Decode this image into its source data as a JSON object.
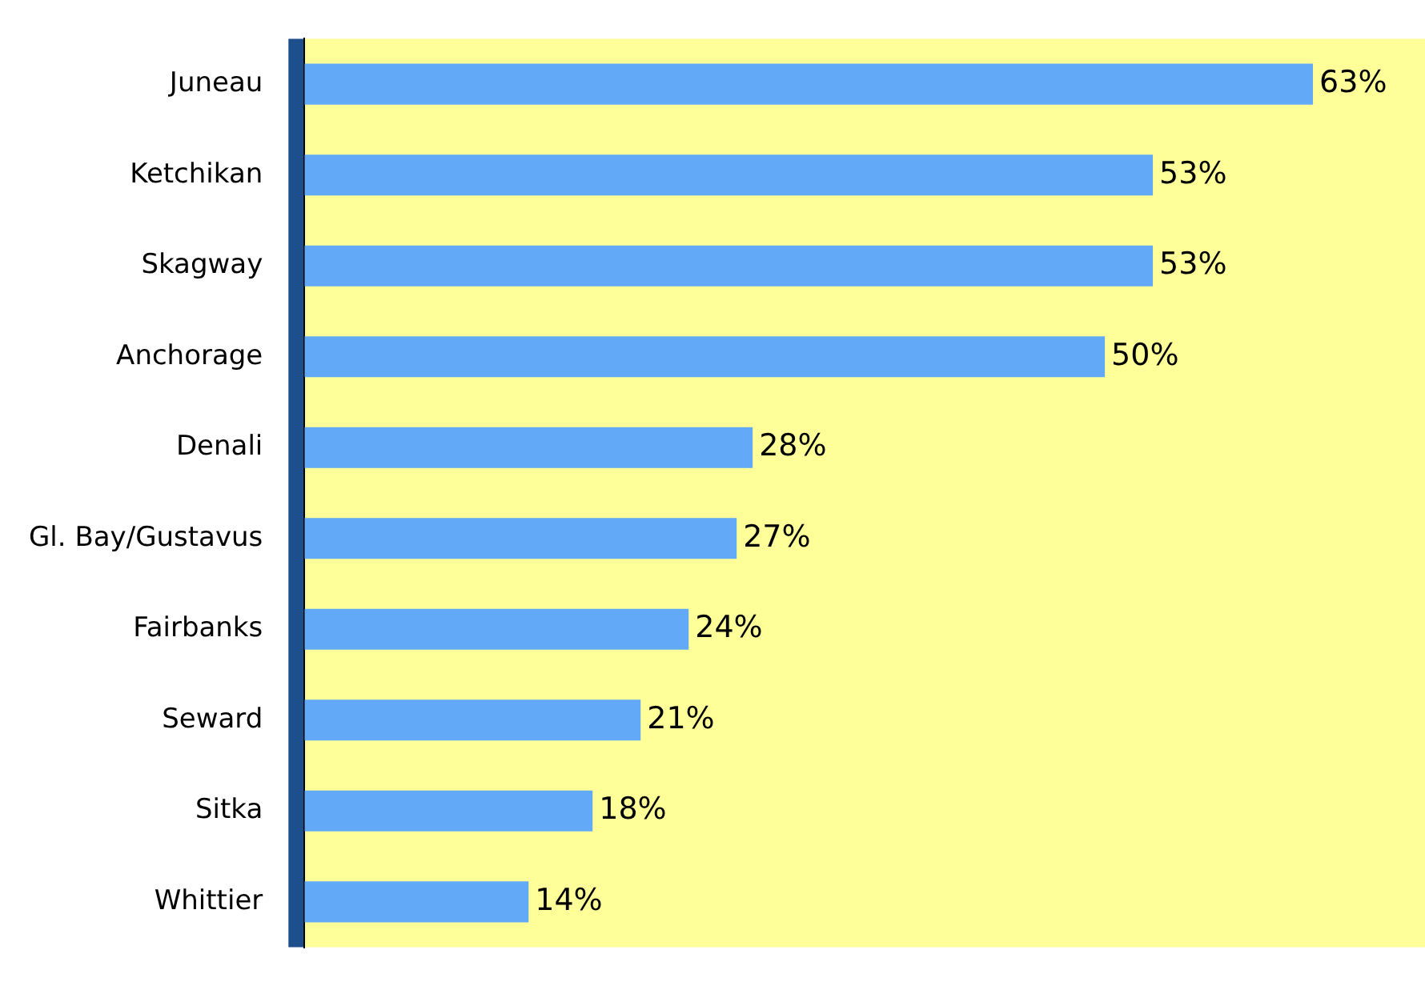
{
  "chart_data": {
    "type": "bar",
    "orientation": "horizontal",
    "categories": [
      "Juneau",
      "Ketchikan",
      "Skagway",
      "Anchorage",
      "Denali",
      "Gl. Bay/Gustavus",
      "Fairbanks",
      "Seward",
      "Sitka",
      "Whittier"
    ],
    "values": [
      63,
      53,
      53,
      50,
      28,
      27,
      24,
      21,
      18,
      14
    ],
    "value_labels": [
      "63%",
      "53%",
      "53%",
      "50%",
      "28%",
      "27%",
      "24%",
      "21%",
      "18%",
      "14%"
    ],
    "color": "#62aaf8",
    "grid": false,
    "legend": false,
    "tick_labels": "y"
  }
}
